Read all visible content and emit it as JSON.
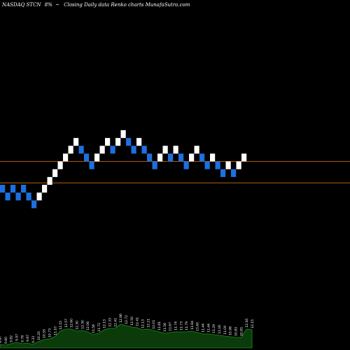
{
  "header": {
    "ticker": "NASDAQ STCN",
    "change": "8%",
    "caption": "Closing Daily data  Renko  charts MunafaSutra.com"
  },
  "colors": {
    "up_brick": "#ffffff",
    "down_brick": "#1e6fe0",
    "ref_line": "#b8620f",
    "volume_fill": "#0b3b0b",
    "volume_stroke": "#1f8a1f"
  },
  "chart_data": {
    "type": "renko",
    "reference_lines": [
      10.9,
      10.35
    ],
    "ylim": [
      7.5,
      14.5
    ],
    "bricks": [
      {
        "d": "down",
        "v": 10.2
      },
      {
        "d": "down",
        "v": 10.0
      },
      {
        "d": "down",
        "v": 10.2
      },
      {
        "d": "down",
        "v": 10.0
      },
      {
        "d": "down",
        "v": 10.2
      },
      {
        "d": "down",
        "v": 10.0
      },
      {
        "d": "down",
        "v": 9.8
      },
      {
        "d": "up",
        "v": 10.0
      },
      {
        "d": "up",
        "v": 10.2
      },
      {
        "d": "up",
        "v": 10.4
      },
      {
        "d": "up",
        "v": 10.6
      },
      {
        "d": "up",
        "v": 10.8
      },
      {
        "d": "up",
        "v": 11.0
      },
      {
        "d": "up",
        "v": 11.2
      },
      {
        "d": "up",
        "v": 11.4
      },
      {
        "d": "down",
        "v": 11.2
      },
      {
        "d": "down",
        "v": 11.0
      },
      {
        "d": "down",
        "v": 10.8
      },
      {
        "d": "up",
        "v": 11.0
      },
      {
        "d": "up",
        "v": 11.2
      },
      {
        "d": "up",
        "v": 11.4
      },
      {
        "d": "down",
        "v": 11.2
      },
      {
        "d": "up",
        "v": 11.4
      },
      {
        "d": "up",
        "v": 11.6
      },
      {
        "d": "down",
        "v": 11.4
      },
      {
        "d": "down",
        "v": 11.2
      },
      {
        "d": "up",
        "v": 11.4
      },
      {
        "d": "down",
        "v": 11.2
      },
      {
        "d": "down",
        "v": 11.0
      },
      {
        "d": "down",
        "v": 10.8
      },
      {
        "d": "up",
        "v": 11.0
      },
      {
        "d": "up",
        "v": 11.2
      },
      {
        "d": "down",
        "v": 11.0
      },
      {
        "d": "up",
        "v": 11.2
      },
      {
        "d": "down",
        "v": 11.0
      },
      {
        "d": "down",
        "v": 10.8
      },
      {
        "d": "up",
        "v": 11.0
      },
      {
        "d": "up",
        "v": 11.2
      },
      {
        "d": "down",
        "v": 11.0
      },
      {
        "d": "down",
        "v": 10.8
      },
      {
        "d": "up",
        "v": 11.0
      },
      {
        "d": "down",
        "v": 10.8
      },
      {
        "d": "down",
        "v": 10.6
      },
      {
        "d": "up",
        "v": 10.8
      },
      {
        "d": "down",
        "v": 10.6
      },
      {
        "d": "up",
        "v": 10.8
      },
      {
        "d": "up",
        "v": 11.0
      }
    ],
    "volume_labels": [
      "9.97",
      "9.60",
      "9.82",
      "9.97",
      "9.78",
      "9.87",
      "9.33",
      "10.20",
      "10.55",
      "10.73",
      "11.10",
      "12.15",
      "12.57",
      "12.60",
      "12.30",
      "12.30",
      "12.06",
      "11.56",
      "11.72",
      "12.13",
      "12.33",
      "12.41",
      "12.86",
      "12.72",
      "12.50",
      "12.41",
      "12.13",
      "12.21",
      "12.01",
      "11.81",
      "11.56",
      "11.67",
      "11.74",
      "11.73",
      "11.79",
      "11.84",
      "11.60",
      "11.44",
      "11.44",
      "11.29",
      "11.16",
      "11.09",
      "10.96",
      "10.83",
      "10.81",
      "12.16",
      "12.15"
    ],
    "volume_heights": [
      5,
      4,
      6,
      8,
      6,
      7,
      5,
      9,
      12,
      13,
      16,
      24,
      27,
      27,
      24,
      25,
      23,
      19,
      21,
      26,
      28,
      28,
      34,
      32,
      30,
      29,
      26,
      27,
      25,
      23,
      21,
      22,
      23,
      23,
      23,
      24,
      22,
      20,
      20,
      19,
      18,
      17,
      16,
      15,
      15,
      27,
      26
    ]
  }
}
